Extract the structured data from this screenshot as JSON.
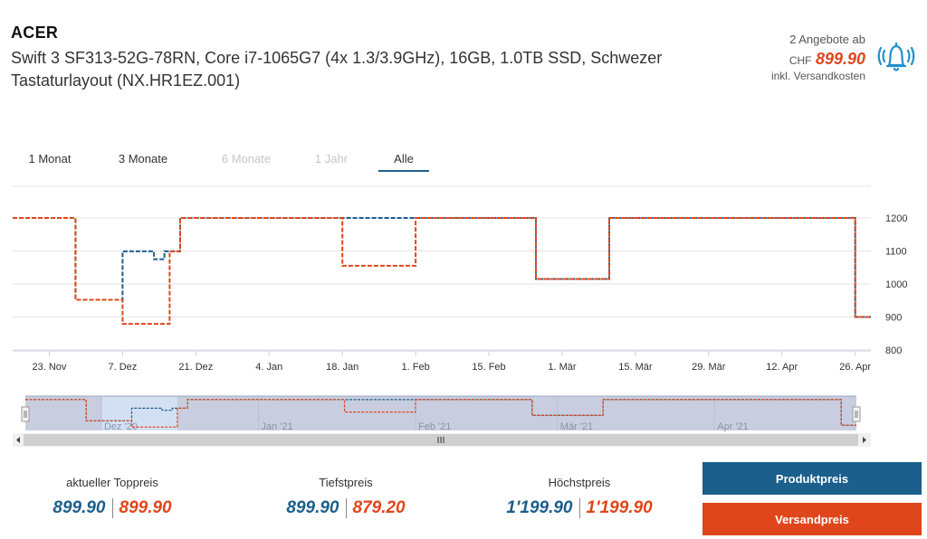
{
  "header": {
    "brand": "ACER",
    "title": "Swift 3 SF313-52G-78RN, Core i7-1065G7 (4x 1.3/3.9GHz), 16GB, 1.0TB SSD, Schwezer Tastaturlayout (NX.HR1EZ.001)"
  },
  "offer": {
    "count": "2 Angebote ab",
    "currency": "CHF",
    "price": "899.90",
    "shipping_note": "inkl. Versandkosten",
    "icon": "bell-alert-icon"
  },
  "range_tabs": [
    {
      "label": "1 Monat",
      "state": "normal"
    },
    {
      "label": "3 Monate",
      "state": "normal"
    },
    {
      "label": "6 Monate",
      "state": "disabled"
    },
    {
      "label": "1 Jahr",
      "state": "disabled"
    },
    {
      "label": "Alle",
      "state": "active"
    }
  ],
  "colors": {
    "product": "#1b5f8c",
    "shipping": "#e0461b",
    "dual": "#7a3d49",
    "navigator_fill": "#c8cedf",
    "navigator_selection": "#d3e0f3"
  },
  "chart_data": {
    "type": "line",
    "step": true,
    "xlabel": "",
    "ylabel": "",
    "x_start": "2020-11-16",
    "x_end": "2021-04-29",
    "ylim": [
      800,
      1250
    ],
    "y_ticks": [
      800,
      900,
      1000,
      1100,
      1200
    ],
    "y_axis_side": "right",
    "grid": true,
    "x_tick_labels": [
      {
        "date": "2020-11-23",
        "label": "23. Nov"
      },
      {
        "date": "2020-12-07",
        "label": "7. Dez"
      },
      {
        "date": "2020-12-21",
        "label": "21. Dez"
      },
      {
        "date": "2021-01-04",
        "label": "4. Jan"
      },
      {
        "date": "2021-01-18",
        "label": "18. Jan"
      },
      {
        "date": "2021-02-01",
        "label": "1. Feb"
      },
      {
        "date": "2021-02-15",
        "label": "15. Feb"
      },
      {
        "date": "2021-03-01",
        "label": "1. Mär"
      },
      {
        "date": "2021-03-15",
        "label": "15. Mär"
      },
      {
        "date": "2021-03-29",
        "label": "29. Mär"
      },
      {
        "date": "2021-04-12",
        "label": "12. Apr"
      },
      {
        "date": "2021-04-26",
        "label": "26. Apr"
      }
    ],
    "series": [
      {
        "name": "Produktpreis",
        "points": [
          [
            "2020-11-16",
            1199.9
          ],
          [
            "2020-11-28",
            1199.9
          ],
          [
            "2020-11-28",
            952
          ],
          [
            "2020-12-07",
            952
          ],
          [
            "2020-12-07",
            1099
          ],
          [
            "2020-12-13",
            1099
          ],
          [
            "2020-12-13",
            1075
          ],
          [
            "2020-12-15",
            1075
          ],
          [
            "2020-12-15",
            1099
          ],
          [
            "2020-12-18",
            1099
          ],
          [
            "2020-12-18",
            1199.9
          ],
          [
            "2021-02-24",
            1199.9
          ],
          [
            "2021-02-24",
            1015
          ],
          [
            "2021-03-10",
            1015
          ],
          [
            "2021-03-10",
            1199.9
          ],
          [
            "2021-04-26",
            1199.9
          ],
          [
            "2021-04-26",
            899.9
          ],
          [
            "2021-04-29",
            899.9
          ]
        ]
      },
      {
        "name": "Versandpreis",
        "points": [
          [
            "2020-11-16",
            1199.9
          ],
          [
            "2020-11-28",
            1199.9
          ],
          [
            "2020-11-28",
            952
          ],
          [
            "2020-12-07",
            952
          ],
          [
            "2020-12-07",
            879.2
          ],
          [
            "2020-12-16",
            879.2
          ],
          [
            "2020-12-16",
            1099
          ],
          [
            "2020-12-18",
            1099
          ],
          [
            "2020-12-18",
            1199.9
          ],
          [
            "2021-01-18",
            1199.9
          ],
          [
            "2021-01-18",
            1055
          ],
          [
            "2021-02-01",
            1055
          ],
          [
            "2021-02-01",
            1199.9
          ],
          [
            "2021-02-24",
            1199.9
          ],
          [
            "2021-02-24",
            1015
          ],
          [
            "2021-03-10",
            1015
          ],
          [
            "2021-03-10",
            1199.9
          ],
          [
            "2021-04-26",
            1199.9
          ],
          [
            "2021-04-26",
            899.9
          ],
          [
            "2021-04-29",
            899.9
          ]
        ]
      }
    ],
    "navigator": {
      "tick_labels": [
        {
          "date": "2020-12-01",
          "label": "Dez '20"
        },
        {
          "date": "2021-01-01",
          "label": "Jan '21"
        },
        {
          "date": "2021-02-01",
          "label": "Feb '21"
        },
        {
          "date": "2021-03-01",
          "label": "Mär '21"
        },
        {
          "date": "2021-04-01",
          "label": "Apr '21"
        }
      ]
    }
  },
  "stats": [
    {
      "label": "aktueller Toppreis",
      "product": "899.90",
      "shipping": "899.90"
    },
    {
      "label": "Tiefstpreis",
      "product": "899.90",
      "shipping": "879.20"
    },
    {
      "label": "Höchstpreis",
      "product": "1'199.90",
      "shipping": "1'199.90"
    }
  ],
  "legend": {
    "product_label": "Produktpreis",
    "shipping_label": "Versandpreis"
  }
}
